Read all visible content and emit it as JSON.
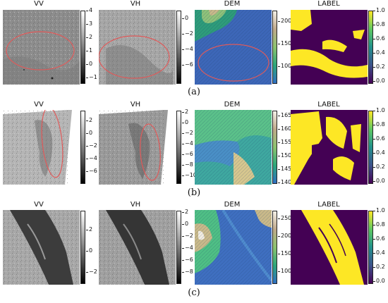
{
  "rows": [
    {
      "id": "a",
      "caption": "(a)",
      "panels": [
        {
          "title": "VV",
          "colormap": "gray",
          "ticks": [
            "4",
            "3",
            "2",
            "1",
            "0",
            "−1"
          ]
        },
        {
          "title": "VH",
          "colormap": "gray",
          "ticks": [
            "0",
            "−2",
            "−4",
            "−6"
          ]
        },
        {
          "title": "DEM",
          "colormap": "terrain",
          "ticks": [
            "200",
            "150",
            "100"
          ]
        },
        {
          "title": "LABEL",
          "colormap": "viridis",
          "ticks": [
            "1.0",
            "0.8",
            "0.6",
            "0.4",
            "0.2",
            "0.0"
          ]
        }
      ]
    },
    {
      "id": "b",
      "caption": "(b)",
      "panels": [
        {
          "title": "VV",
          "colormap": "gray",
          "ticks": [
            "2",
            "0",
            "−2",
            "−4",
            "−6"
          ]
        },
        {
          "title": "VH",
          "colormap": "gray",
          "ticks": [
            "2",
            "0",
            "−2",
            "−4",
            "−6",
            "−8",
            "−10"
          ]
        },
        {
          "title": "DEM",
          "colormap": "terrain",
          "ticks": [
            "165",
            "160",
            "155",
            "150",
            "145",
            "140"
          ]
        },
        {
          "title": "LABEL",
          "colormap": "viridis",
          "ticks": [
            "1.0",
            "0.8",
            "0.6",
            "0.4",
            "0.2",
            "0.0"
          ]
        }
      ]
    },
    {
      "id": "c",
      "caption": "(c)",
      "panels": [
        {
          "title": "VV",
          "colormap": "gray",
          "ticks": [
            "2",
            "0",
            "−2"
          ]
        },
        {
          "title": "VH",
          "colormap": "gray",
          "ticks": [
            "2",
            "0",
            "−2",
            "−4",
            "−6",
            "−8"
          ]
        },
        {
          "title": "DEM",
          "colormap": "terrain",
          "ticks": [
            "250",
            "200",
            "150",
            "100"
          ]
        },
        {
          "title": "LABEL",
          "colormap": "viridis",
          "ticks": [
            "1.0",
            "0.8",
            "0.6",
            "0.4",
            "0.2",
            "0.0"
          ]
        }
      ]
    }
  ],
  "colors": {
    "ellipse": "#e05a5a",
    "label_water": "#440154",
    "label_land": "#fde725"
  }
}
